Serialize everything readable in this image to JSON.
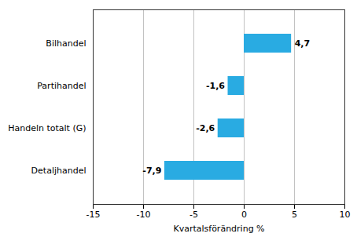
{
  "chart_data": {
    "type": "bar",
    "orientation": "horizontal",
    "categories": [
      "Detaljhandel",
      "Handeln totalt (G)",
      "Partihandel",
      "Bilhandel"
    ],
    "values": [
      -7.9,
      -2.6,
      -1.6,
      4.7
    ],
    "value_labels": [
      "-7,9",
      "-2,6",
      "-1,6",
      "4,7"
    ],
    "data_labels": true,
    "color": "#29abe2",
    "xlabel": "Kvartalsförändring %",
    "xlim": [
      -15,
      10
    ],
    "xticks": [
      -15,
      -10,
      -5,
      0,
      5,
      10
    ],
    "grid": true
  }
}
